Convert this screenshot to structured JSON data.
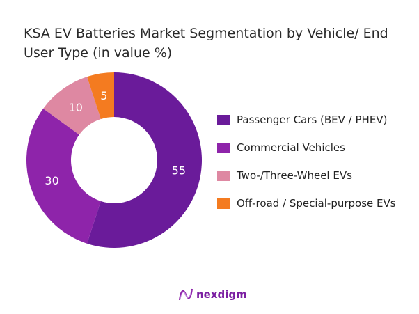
{
  "chart_data": {
    "type": "pie",
    "title": "KSA EV Batteries Market Segmentation by Vehicle/ End User Type (in value %)",
    "categories": [
      "Passenger Cars (BEV / PHEV)",
      "Commercial Vehicles",
      "Two-/Three-Wheel EVs",
      "Off-road / Special-purpose EVs"
    ],
    "values": [
      55,
      30,
      10,
      5
    ],
    "labels": [
      "55",
      "30",
      "10",
      "5"
    ],
    "colors": [
      "#6a1b9a",
      "#8e24aa",
      "#de88a2",
      "#f47b20"
    ],
    "donut": true,
    "legend": "right"
  },
  "brand": {
    "name": "nexdigm"
  }
}
